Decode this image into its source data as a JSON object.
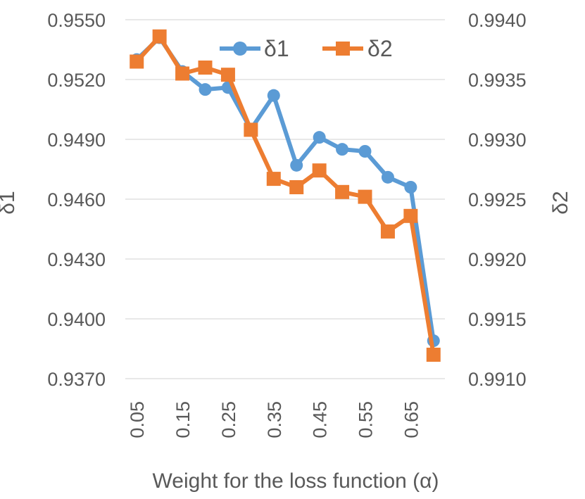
{
  "chart_data": {
    "type": "line",
    "title": "",
    "xlabel": "Weight for the loss function (α)",
    "ylabel": "δ1",
    "y2label": "δ2",
    "x": [
      0.05,
      0.1,
      0.15,
      0.2,
      0.25,
      0.3,
      0.35,
      0.4,
      0.45,
      0.5,
      0.55,
      0.6,
      0.65,
      0.7
    ],
    "x_tick_labels": [
      "0.05",
      "0.15",
      "0.25",
      "0.35",
      "0.45",
      "0.55",
      "0.65"
    ],
    "xlim": [
      0.025,
      0.725
    ],
    "ylim": [
      0.937,
      0.955
    ],
    "y_ticks": [
      "0.9370",
      "0.9400",
      "0.9430",
      "0.9460",
      "0.9490",
      "0.9520",
      "0.9550"
    ],
    "y2lim": [
      0.991,
      0.994
    ],
    "y2_ticks": [
      "0.9910",
      "0.9915",
      "0.9920",
      "0.9925",
      "0.9930",
      "0.9935",
      "0.9940"
    ],
    "grid": true,
    "legend_position": "top-center",
    "series": [
      {
        "name": "δ1",
        "axis": "left",
        "marker": "circle",
        "color": "#5B9BD5",
        "values": [
          0.953,
          0.9541,
          0.9524,
          0.9515,
          0.9516,
          0.9495,
          0.9512,
          0.9477,
          0.9491,
          0.9485,
          0.9484,
          0.9471,
          0.9466,
          0.9389
        ]
      },
      {
        "name": "δ2",
        "axis": "right",
        "marker": "square",
        "color": "#ED7D31",
        "values": [
          0.99365,
          0.99386,
          0.99355,
          0.9936,
          0.99354,
          0.99308,
          0.99267,
          0.9926,
          0.99274,
          0.99256,
          0.99252,
          0.99223,
          0.99236,
          0.9912
        ]
      }
    ]
  }
}
